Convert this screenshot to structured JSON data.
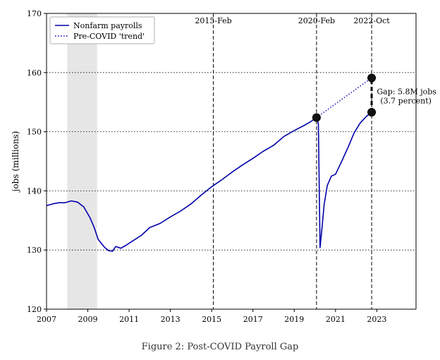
{
  "caption": "Figure 2: Post-COVID Payroll Gap",
  "chart_data": {
    "type": "line",
    "title": "",
    "xlabel": "",
    "ylabel": "jobs (millions)",
    "xlim": [
      2007,
      2024.9
    ],
    "ylim": [
      120,
      170
    ],
    "x_ticks": [
      2007,
      2009,
      2011,
      2013,
      2015,
      2017,
      2019,
      2021,
      2023
    ],
    "y_ticks": [
      120,
      130,
      140,
      150,
      160,
      170
    ],
    "grid": "y-dotted",
    "legend_position": "top-left",
    "legend": [
      {
        "label": "Nonfarm payrolls",
        "style": "solid",
        "color": "#0000aa"
      },
      {
        "label": "Pre-COVID 'trend'",
        "style": "dotted",
        "color": "#0000aa"
      }
    ],
    "recession_band": {
      "x_start": 2008.0,
      "x_end": 2009.45,
      "color": "#e6e6e6"
    },
    "vertical_lines": [
      {
        "x": 2015.08,
        "label": "2015-Feb"
      },
      {
        "x": 2020.08,
        "label": "2020-Feb"
      },
      {
        "x": 2022.75,
        "label": "2022-Oct"
      }
    ],
    "series": [
      {
        "name": "Nonfarm payrolls",
        "style": "solid",
        "color": "#0000aa",
        "x": [
          2007.0,
          2007.3,
          2007.6,
          2007.9,
          2008.2,
          2008.5,
          2008.8,
          2009.1,
          2009.3,
          2009.5,
          2009.8,
          2010.0,
          2010.2,
          2010.35,
          2010.6,
          2010.85,
          2011.2,
          2011.6,
          2012.0,
          2012.5,
          2013.0,
          2013.5,
          2014.0,
          2014.5,
          2015.0,
          2015.5,
          2016.0,
          2016.5,
          2017.0,
          2017.5,
          2018.0,
          2018.5,
          2019.0,
          2019.5,
          2019.8,
          2020.0,
          2020.08,
          2020.17,
          2020.25,
          2020.33,
          2020.45,
          2020.6,
          2020.8,
          2021.0,
          2021.3,
          2021.6,
          2021.9,
          2022.2,
          2022.5,
          2022.75
        ],
        "values": [
          137.5,
          137.8,
          138.0,
          138.0,
          138.3,
          138.1,
          137.3,
          135.5,
          133.9,
          131.8,
          130.5,
          129.9,
          129.8,
          130.6,
          130.3,
          130.8,
          131.6,
          132.5,
          133.8,
          134.5,
          135.6,
          136.6,
          137.8,
          139.3,
          140.7,
          141.9,
          143.2,
          144.4,
          145.5,
          146.7,
          147.7,
          149.2,
          150.2,
          151.1,
          151.7,
          152.2,
          152.4,
          151.3,
          130.4,
          133.2,
          137.7,
          140.9,
          142.5,
          142.8,
          145.0,
          147.3,
          149.8,
          151.5,
          152.6,
          153.3
        ]
      },
      {
        "name": "Pre-COVID 'trend'",
        "style": "dotted",
        "color": "#0000aa",
        "x": [
          2020.08,
          2022.75
        ],
        "values": [
          152.4,
          159.1
        ]
      }
    ],
    "markers": [
      {
        "x": 2020.08,
        "y": 152.4
      },
      {
        "x": 2022.75,
        "y": 159.1
      },
      {
        "x": 2022.75,
        "y": 153.3
      }
    ],
    "gap": {
      "x": 2022.75,
      "y_from": 153.3,
      "y_to": 159.1
    },
    "annotation": {
      "lines": [
        "Gap: 5.8M jobs",
        "(3.7 percent)"
      ],
      "x": 2023.0,
      "y": 156.2
    }
  }
}
